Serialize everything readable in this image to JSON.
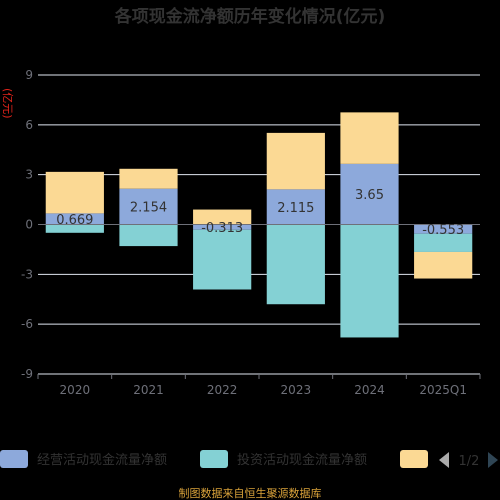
{
  "chart_data": {
    "type": "bar",
    "title": "各项现金流净额历年变化情况(亿元)",
    "ylabel": "(亿元)",
    "categories": [
      "2020",
      "2021",
      "2022",
      "2023",
      "2024",
      "2025Q1"
    ],
    "ylim": [
      -9,
      9
    ],
    "yticks": [
      9,
      6,
      3,
      0,
      -3,
      -6,
      -9
    ],
    "grid": true,
    "stacked": true,
    "legend_position": "bottom",
    "series": [
      {
        "name": "经营活动现金流量净额",
        "color": "#8da9db",
        "values": [
          0.669,
          2.154,
          -0.313,
          2.115,
          3.65,
          -0.553
        ],
        "labels": [
          "0.669",
          "2.154",
          "-0.313",
          "2.115",
          "3.65",
          "-0.553"
        ]
      },
      {
        "name": "投资活动现金流量净额",
        "color": "#84d1d4",
        "values": [
          -0.5,
          -1.3,
          -3.6,
          -4.8,
          -6.8,
          -1.1
        ],
        "labels": []
      },
      {
        "name": "",
        "color": "#fbd994",
        "values": [
          2.5,
          1.2,
          0.9,
          3.4,
          3.1,
          -1.6
        ],
        "labels": []
      }
    ],
    "legend_page": "1/2",
    "source": "制图数据来自恒生聚源数据库"
  }
}
